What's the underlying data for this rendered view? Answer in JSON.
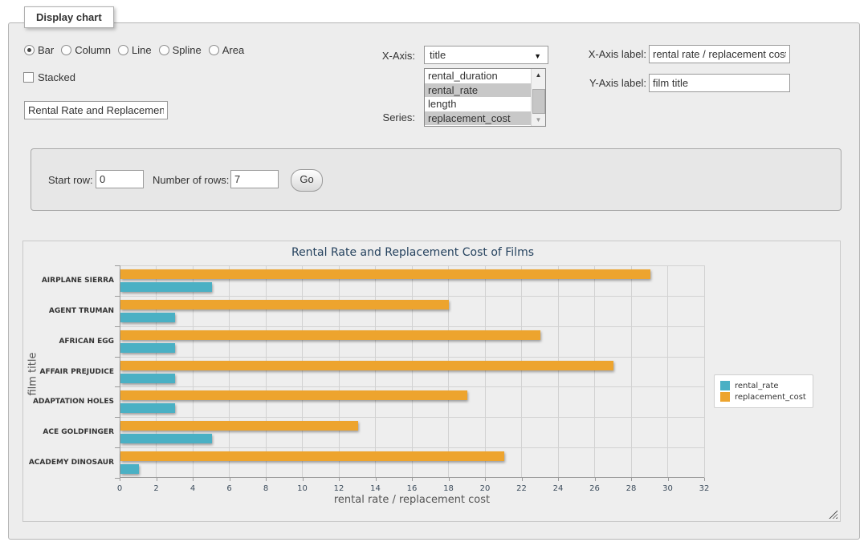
{
  "panel": {
    "legend_title": "Display chart",
    "chart_types": [
      {
        "label": "Bar",
        "selected": true
      },
      {
        "label": "Column",
        "selected": false
      },
      {
        "label": "Line",
        "selected": false
      },
      {
        "label": "Spline",
        "selected": false
      },
      {
        "label": "Area",
        "selected": false
      }
    ],
    "stacked_label": "Stacked",
    "stacked_checked": false,
    "chart_title_input_value": "Rental Rate and Replacement Cost of Films",
    "x_axis": {
      "label": "X-Axis:",
      "selected_value": "title"
    },
    "series": {
      "label": "Series:",
      "options": [
        {
          "label": "rental_duration",
          "selected": false
        },
        {
          "label": "rental_rate",
          "selected": true
        },
        {
          "label": "length",
          "selected": false
        },
        {
          "label": "replacement_cost",
          "selected": true
        }
      ]
    },
    "x_axis_label": {
      "label": "X-Axis label:",
      "value": "rental rate / replacement cost"
    },
    "y_axis_label": {
      "label": "Y-Axis label:",
      "value": "film title"
    }
  },
  "row_controls": {
    "start_row_label": "Start row:",
    "start_row_value": "0",
    "num_rows_label": "Number of rows:",
    "num_rows_value": "7",
    "go_label": "Go"
  },
  "chart_data": {
    "type": "bar",
    "title": "Rental Rate and Replacement Cost of Films",
    "categories": [
      "AIRPLANE SIERRA",
      "AGENT TRUMAN",
      "AFRICAN EGG",
      "AFFAIR PREJUDICE",
      "ADAPTATION HOLES",
      "ACE GOLDFINGER",
      "ACADEMY DINOSAUR"
    ],
    "series": [
      {
        "name": "rental_rate",
        "color": "#4ab0c4",
        "values": [
          4.99,
          2.99,
          2.99,
          2.99,
          2.99,
          4.99,
          0.99
        ]
      },
      {
        "name": "replacement_cost",
        "color": "#eda42e",
        "values": [
          28.99,
          17.99,
          22.99,
          26.99,
          18.99,
          12.99,
          20.99
        ]
      }
    ],
    "xlabel": "rental rate / replacement cost",
    "ylabel": "film title",
    "xlim": [
      0,
      32
    ],
    "xticks": [
      0,
      2,
      4,
      6,
      8,
      10,
      12,
      14,
      16,
      18,
      20,
      22,
      24,
      26,
      28,
      30,
      32
    ],
    "grid": true,
    "legend_position": "right"
  }
}
